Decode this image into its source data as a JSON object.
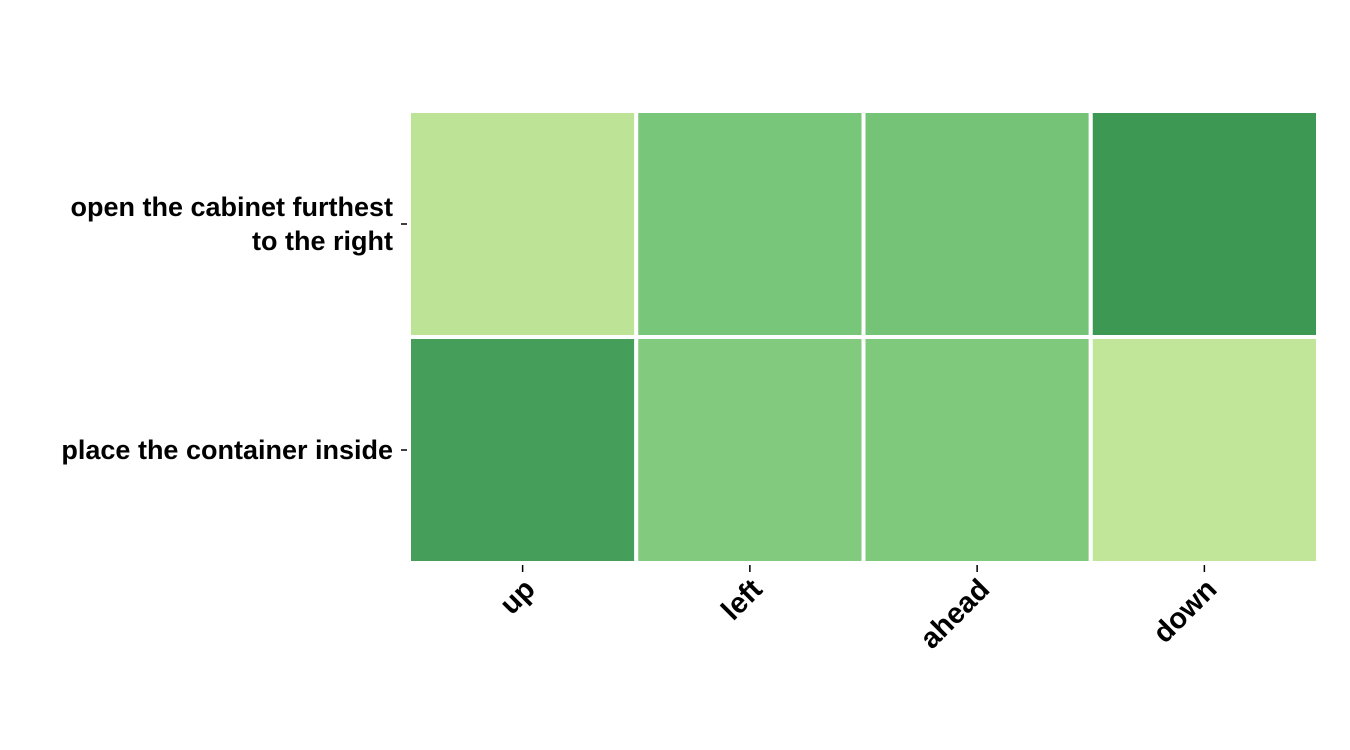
{
  "chart_data": {
    "type": "heatmap",
    "rows": [
      "open the cabinet furthest to the right",
      "place the container inside"
    ],
    "row_label_lines": [
      [
        "open the cabinet furthest",
        "to the right"
      ],
      [
        "place the container inside"
      ]
    ],
    "columns": [
      "up",
      "left",
      "ahead",
      "down"
    ],
    "values": [
      [
        0.15,
        0.5,
        0.52,
        0.85
      ],
      [
        0.8,
        0.45,
        0.47,
        0.12
      ]
    ],
    "value_range": [
      0,
      1
    ],
    "colormap": "YlGn",
    "colors": {
      "low": "#d9f0a3",
      "mid": "#78c679",
      "high": "#238443"
    },
    "title": "",
    "xlabel": "",
    "ylabel": "",
    "legend": "none",
    "grid": false
  }
}
